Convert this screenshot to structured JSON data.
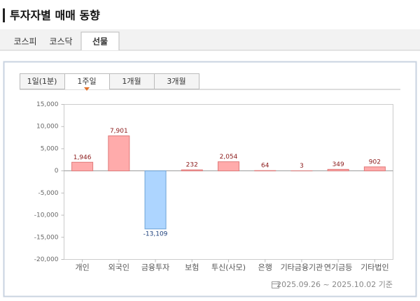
{
  "header": {
    "title": "투자자별 매매 동향"
  },
  "market_tabs": [
    "코스피",
    "코스닥",
    "선물"
  ],
  "period_tabs": [
    "1일(1분)",
    "1주일",
    "1개월",
    "3개월"
  ],
  "chart_data": {
    "type": "bar",
    "categories": [
      "개인",
      "외국인",
      "금융투자",
      "보험",
      "투신(사모)",
      "은행",
      "기타금융기관",
      "연기금등",
      "기타법인"
    ],
    "values": [
      1946,
      7901,
      -13109,
      232,
      2054,
      64,
      3,
      349,
      902
    ],
    "value_labels": [
      "1,946",
      "7,901",
      "-13,109",
      "232",
      "2,054",
      "64",
      "3",
      "349",
      "902"
    ],
    "positive_color": "#ffabab",
    "negative_color": "#add5ff",
    "ylim": [
      -20000,
      15000
    ],
    "yticks": [
      {
        "value": -20000,
        "label": "-20,000"
      },
      {
        "value": -15000,
        "label": "-15,000"
      },
      {
        "value": -10000,
        "label": "-10,000"
      },
      {
        "value": -5000,
        "label": "-5,000"
      },
      0,
      {
        "value": 5000,
        "label": "5,000"
      },
      {
        "value": 10000,
        "label": "10,000"
      },
      {
        "value": 15000,
        "label": "15,000"
      }
    ],
    "grid": false
  },
  "footer": {
    "period": "2025.09.26 ~ 2025.10.02 기준"
  }
}
